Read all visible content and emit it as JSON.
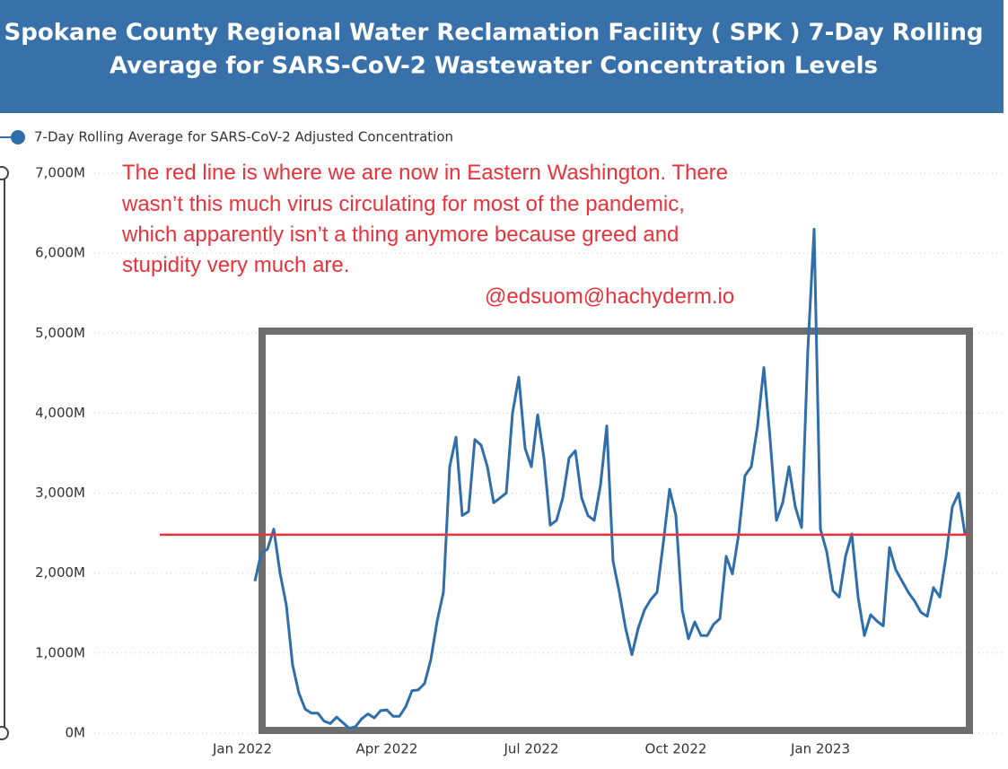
{
  "chart_data": {
    "type": "line",
    "title": [
      "Spokane County Regional Water Reclamation Facility ( SPK ) 7-Day Rolling",
      "Average for SARS-CoV-2 Wastewater Concentration Levels"
    ],
    "annotation": [
      "The red line is where we are now in Eastern Washington. There",
      "wasn’t this much virus circulating for most of the pandemic,",
      "which apparently isn’t a thing anymore because greed and",
      "stupidity very much are."
    ],
    "signature": "@edsuom@hachyderm.io",
    "categories": [
      "Jan 2022",
      null,
      null,
      null,
      null,
      null,
      null,
      null,
      null,
      null,
      null,
      null,
      null,
      null,
      null,
      null,
      null,
      null,
      null,
      null,
      null,
      null,
      null,
      "Apr 2022",
      null,
      null,
      null,
      null,
      null,
      null,
      null,
      null,
      null,
      null,
      null,
      null,
      null,
      null,
      null,
      null,
      null,
      null,
      null,
      null,
      null,
      null,
      "Jul 2022",
      null,
      null,
      null,
      null,
      null,
      null,
      null,
      null,
      null,
      null,
      null,
      null,
      null,
      null,
      null,
      null,
      null,
      null,
      null,
      null,
      null,
      null,
      "Oct 2022",
      null,
      null,
      null,
      null,
      null,
      null,
      null,
      null,
      null,
      null,
      null,
      null,
      null,
      null,
      null,
      null,
      null,
      null,
      null,
      null,
      null,
      null,
      "Jan 2023",
      null,
      null,
      null,
      null,
      null,
      null,
      null,
      null,
      null,
      null,
      null,
      null,
      null,
      null,
      null,
      null,
      null,
      null,
      null,
      null,
      null,
      null,
      null
    ],
    "series": [
      {
        "name": "7-Day Rolling Average for SARS-CoV-2 Adjusted Concentration",
        "color": "#2f6eaa",
        "values": [
          null,
          null,
          1900,
          2250,
          2300,
          2550,
          2000,
          1600,
          850,
          500,
          300,
          250,
          250,
          150,
          120,
          200,
          130,
          60,
          80,
          180,
          240,
          190,
          280,
          290,
          210,
          210,
          330,
          530,
          540,
          620,
          920,
          1400,
          1760,
          3330,
          3700,
          2720,
          2770,
          3670,
          3600,
          3330,
          2880,
          2940,
          3000,
          4000,
          4450,
          3560,
          3330,
          3980,
          3440,
          2600,
          2660,
          2940,
          3440,
          3530,
          2940,
          2720,
          2660,
          3100,
          3840,
          2150,
          1760,
          1310,
          980,
          1310,
          1540,
          1670,
          1760,
          2380,
          3050,
          2720,
          1540,
          1180,
          1390,
          1220,
          1220,
          1360,
          1430,
          2210,
          1990,
          2490,
          3220,
          3330,
          3840,
          4570,
          3670,
          2660,
          2880,
          3330,
          2830,
          2570,
          4790,
          6300,
          2550,
          2270,
          1780,
          1700,
          2210,
          2490,
          1700,
          1220,
          1480,
          1400,
          1340,
          2320,
          2040,
          1900,
          1760,
          1650,
          1510,
          1460,
          1820,
          1700,
          2210,
          2830,
          3000,
          2490
        ]
      }
    ],
    "ylim": [
      0,
      7000
    ],
    "yticks": [
      {
        "value": 0,
        "label": "0M"
      },
      {
        "value": 1000,
        "label": "1,000M"
      },
      {
        "value": 2000,
        "label": "2,000M"
      },
      {
        "value": 3000,
        "label": "3,000M"
      },
      {
        "value": 4000,
        "label": "4,000M"
      },
      {
        "value": 5000,
        "label": "5,000M"
      },
      {
        "value": 6000,
        "label": "6,000M"
      },
      {
        "value": 7000,
        "label": "7,000M"
      }
    ],
    "reference_line": {
      "value": 2480,
      "color": "#e8323c"
    },
    "grid": true
  }
}
